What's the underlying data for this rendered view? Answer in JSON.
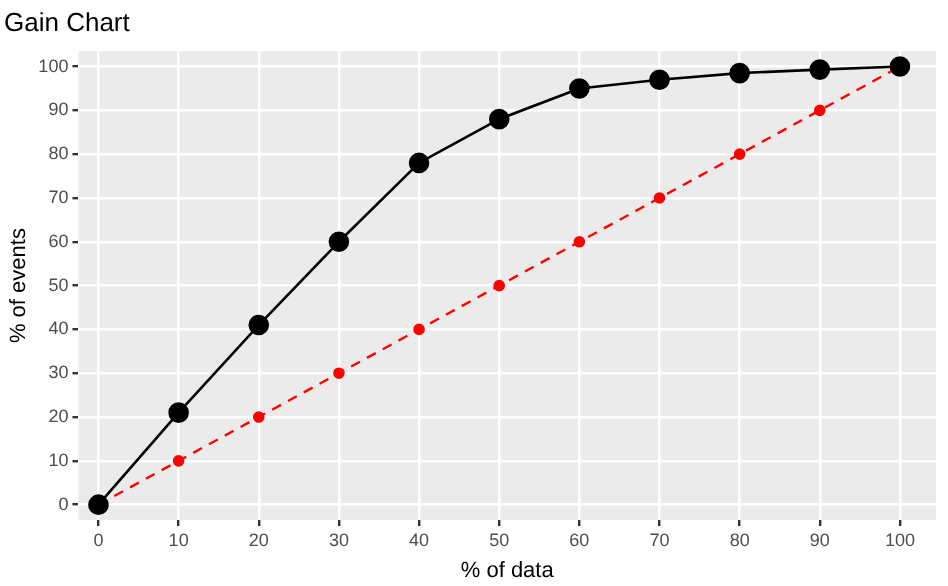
{
  "chart_data": {
    "type": "line",
    "title": "Gain Chart",
    "xlabel": "% of data",
    "ylabel": "% of events",
    "x": [
      0,
      10,
      20,
      30,
      40,
      50,
      60,
      70,
      80,
      90,
      100
    ],
    "series": [
      {
        "color": "#000000",
        "values": [
          0,
          21,
          41,
          60,
          78,
          88,
          95,
          97,
          98.5,
          99.3,
          100
        ],
        "line_style": "solid",
        "marker": "circle"
      },
      {
        "color": "#ff0000",
        "values": [
          0,
          10,
          20,
          30,
          40,
          50,
          60,
          70,
          80,
          90,
          100
        ],
        "line_style": "dashed",
        "marker": "circle"
      }
    ],
    "xlim": [
      -2.5,
      104.5
    ],
    "ylim": [
      -3.5,
      103.5
    ],
    "xticks": [
      0,
      10,
      20,
      30,
      40,
      50,
      60,
      70,
      80,
      90,
      100
    ],
    "yticks": [
      0,
      10,
      20,
      30,
      40,
      50,
      60,
      70,
      80,
      90,
      100
    ],
    "grid": true,
    "legend": false
  }
}
